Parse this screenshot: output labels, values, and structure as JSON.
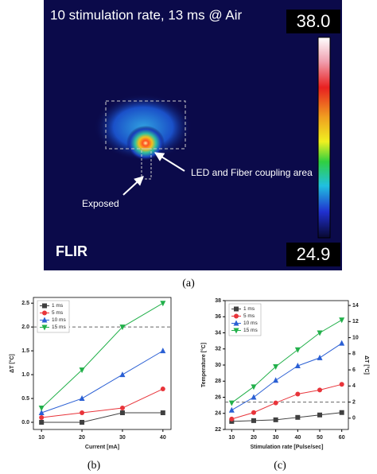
{
  "thermal_image": {
    "title": "10 stimulation rate, 13 ms @ Air",
    "scale_max": "38.0",
    "scale_min": "24.9",
    "annotation_coupling": "LED and Fiber coupling area",
    "annotation_exposed": "Exposed",
    "logo": "FLIR"
  },
  "captions": [
    "(a)",
    "(b)",
    "(c)"
  ],
  "chart_data": [
    {
      "type": "line",
      "x_label": "Current [mA]",
      "y_label": "ΔT [°C]",
      "x": [
        10,
        20,
        30,
        40
      ],
      "xlim": [
        8,
        42
      ],
      "xticks": [
        10,
        20,
        30,
        40
      ],
      "ylim": [
        -0.15,
        2.62
      ],
      "yticks": [
        {
          "value": 0,
          "label": "0.0"
        },
        {
          "value": 0.5,
          "label": "0.5"
        },
        {
          "value": 1,
          "label": "1.0"
        },
        {
          "value": 1.5,
          "label": "1.5"
        },
        {
          "value": 2,
          "label": "2.0"
        },
        {
          "value": 2.5,
          "label": "2.5"
        }
      ],
      "reference_line": {
        "value": 2,
        "axis": "y"
      },
      "legend": "upper left",
      "series": [
        {
          "name": "1 ms",
          "color": "#404040",
          "marker": "square",
          "values": [
            0,
            0,
            0.2,
            0.2
          ]
        },
        {
          "name": "5 ms",
          "color": "#e8343a",
          "marker": "circle",
          "values": [
            0.1,
            0.2,
            0.3,
            0.7
          ]
        },
        {
          "name": "10 ms",
          "color": "#2a5fd4",
          "marker": "triangle-up",
          "values": [
            0.2,
            0.5,
            1,
            1.5
          ]
        },
        {
          "name": "15 ms",
          "color": "#22b04a",
          "marker": "triangle-down",
          "values": [
            0.3,
            1.1,
            2,
            2.5
          ]
        }
      ]
    },
    {
      "type": "line",
      "x_label": "Stimulation rate [Pulse/sec]",
      "y_label": "Temperature [°C]",
      "y2_label": "ΔT [°C]",
      "x": [
        10,
        20,
        30,
        40,
        50,
        60
      ],
      "xlim": [
        7,
        63
      ],
      "xticks": [
        10,
        20,
        30,
        40,
        50,
        60
      ],
      "ylim": [
        22,
        38
      ],
      "yticks": [
        22,
        24,
        26,
        28,
        30,
        32,
        34,
        36,
        38
      ],
      "y2lim": [
        -1.4,
        14.6
      ],
      "y2ticks": [
        0,
        2,
        4,
        6,
        8,
        10,
        12,
        14
      ],
      "reference_line": {
        "value": 2,
        "axis": "y2"
      },
      "legend": "upper left",
      "series": [
        {
          "name": "1 ms",
          "color": "#404040",
          "marker": "square",
          "values": [
            23,
            23.1,
            23.2,
            23.5,
            23.8,
            24.1
          ]
        },
        {
          "name": "5 ms",
          "color": "#e8343a",
          "marker": "circle",
          "values": [
            23.3,
            24.1,
            25.3,
            26.4,
            26.9,
            27.6
          ]
        },
        {
          "name": "10 ms",
          "color": "#2a5fd4",
          "marker": "triangle-up",
          "values": [
            24.4,
            26,
            28.1,
            29.9,
            30.9,
            32.7
          ]
        },
        {
          "name": "15 ms",
          "color": "#22b04a",
          "marker": "triangle-down",
          "values": [
            25.3,
            27.3,
            29.8,
            31.9,
            34,
            35.6
          ]
        }
      ]
    }
  ]
}
